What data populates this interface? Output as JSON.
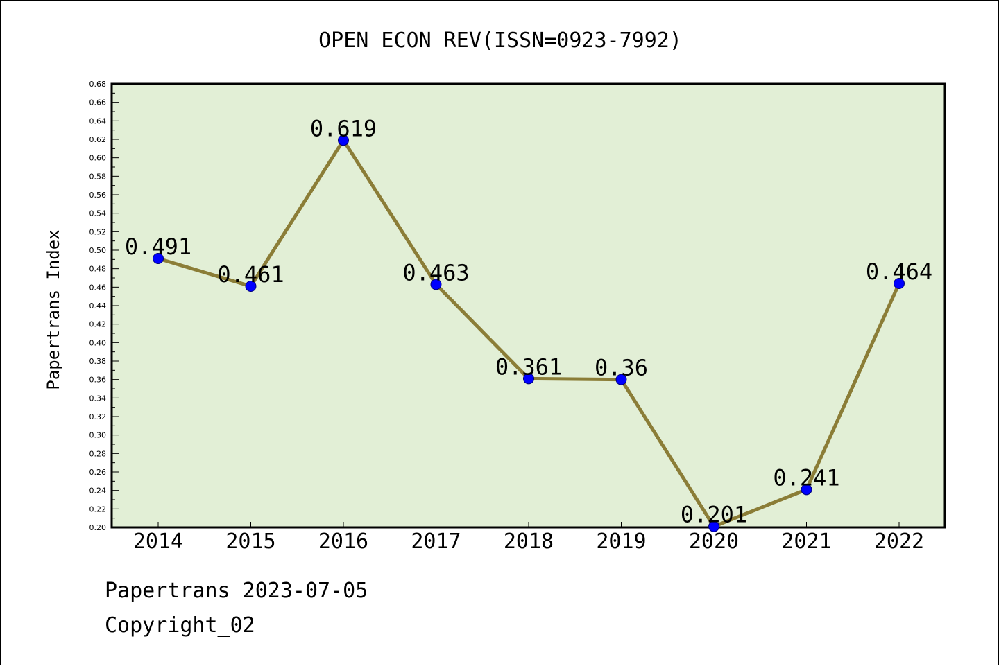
{
  "chart_data": {
    "type": "line",
    "title": "OPEN ECON REV(ISSN=0923-7992)",
    "xlabel": "",
    "ylabel": "Papertrans Index",
    "categories": [
      "2014",
      "2015",
      "2016",
      "2017",
      "2018",
      "2019",
      "2020",
      "2021",
      "2022"
    ],
    "series": [
      {
        "values": [
          0.491,
          0.461,
          0.619,
          0.463,
          0.361,
          0.36,
          0.201,
          0.241,
          0.464
        ],
        "data_labels": [
          "0.491",
          "0.461",
          "0.619",
          "0.463",
          "0.361",
          "0.36",
          "0.201",
          "0.241",
          "0.464"
        ]
      }
    ],
    "ylim": [
      0.2,
      0.68
    ],
    "ytick_step": 0.02,
    "grid": false,
    "legend": "none",
    "colors": {
      "plot_background": "#e2efd6",
      "line": "#8b7d37",
      "marker_fill": "#0000ff",
      "marker_edge": "#00007a"
    }
  },
  "footer": {
    "line1": "Papertrans 2023-07-05",
    "line2": "Copyright_02"
  }
}
